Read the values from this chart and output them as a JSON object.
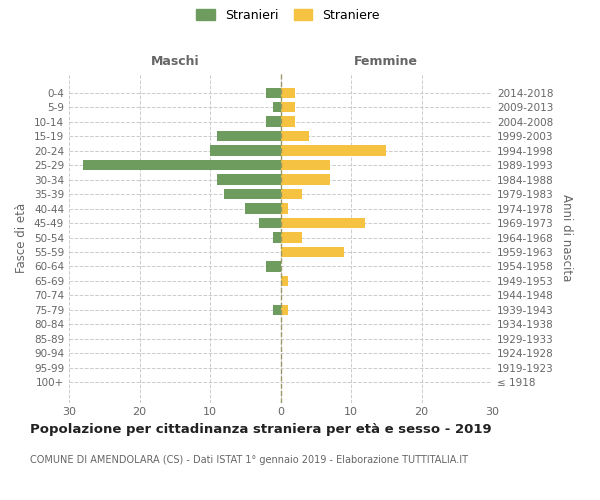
{
  "age_groups": [
    "100+",
    "95-99",
    "90-94",
    "85-89",
    "80-84",
    "75-79",
    "70-74",
    "65-69",
    "60-64",
    "55-59",
    "50-54",
    "45-49",
    "40-44",
    "35-39",
    "30-34",
    "25-29",
    "20-24",
    "15-19",
    "10-14",
    "5-9",
    "0-4"
  ],
  "birth_years": [
    "≤ 1918",
    "1919-1923",
    "1924-1928",
    "1929-1933",
    "1934-1938",
    "1939-1943",
    "1944-1948",
    "1949-1953",
    "1954-1958",
    "1959-1963",
    "1964-1968",
    "1969-1973",
    "1974-1978",
    "1979-1983",
    "1984-1988",
    "1989-1993",
    "1994-1998",
    "1999-2003",
    "2004-2008",
    "2009-2013",
    "2014-2018"
  ],
  "maschi": [
    0,
    0,
    0,
    0,
    0,
    1,
    0,
    0,
    2,
    0,
    1,
    3,
    5,
    8,
    9,
    28,
    10,
    9,
    2,
    1,
    2
  ],
  "femmine": [
    0,
    0,
    0,
    0,
    0,
    1,
    0,
    1,
    0,
    9,
    3,
    12,
    1,
    3,
    7,
    7,
    15,
    4,
    2,
    2,
    2
  ],
  "maschi_color": "#6e9c5e",
  "femmine_color": "#f5c242",
  "grid_color": "#cccccc",
  "centerline_color": "#999966",
  "background_color": "#ffffff",
  "text_color": "#666666",
  "title": "Popolazione per cittadinanza straniera per età e sesso - 2019",
  "subtitle": "COMUNE DI AMENDOLARA (CS) - Dati ISTAT 1° gennaio 2019 - Elaborazione TUTTITALIA.IT",
  "ylabel_left": "Fasce di età",
  "ylabel_right": "Anni di nascita",
  "header_left": "Maschi",
  "header_right": "Femmine",
  "legend_maschi": "Stranieri",
  "legend_femmine": "Straniere",
  "xlim": 30,
  "bar_height": 0.72
}
